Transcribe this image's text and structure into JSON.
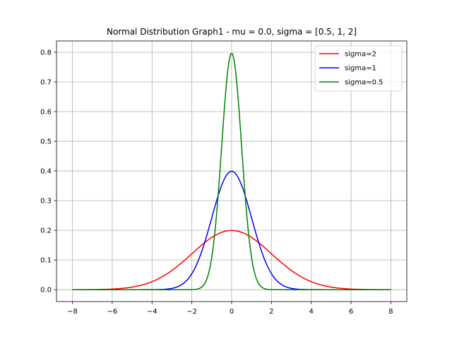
{
  "chart_data": {
    "type": "line",
    "title": "Normal Distribution Graph1 - mu = 0.0, sigma = [0.5, 1, 2]",
    "xlabel": "",
    "ylabel": "",
    "xlim": [
      -8.8,
      8.8
    ],
    "ylim": [
      -0.04,
      0.838
    ],
    "x_ticks": [
      -8,
      -6,
      -4,
      -2,
      0,
      2,
      4,
      6,
      8
    ],
    "x_tick_labels": [
      "−8",
      "−6",
      "−4",
      "−2",
      "0",
      "2",
      "4",
      "6",
      "8"
    ],
    "y_ticks": [
      0.0,
      0.1,
      0.2,
      0.3,
      0.4,
      0.5,
      0.6,
      0.7,
      0.8
    ],
    "y_tick_labels": [
      "0.0",
      "0.1",
      "0.2",
      "0.3",
      "0.4",
      "0.5",
      "0.6",
      "0.7",
      "0.8"
    ],
    "grid": true,
    "legend_position": "top-right",
    "mu": 0.0,
    "x_range": [
      -8,
      8
    ],
    "series": [
      {
        "name": "sigma=2",
        "sigma": 2,
        "color": "#ff0000"
      },
      {
        "name": "sigma=1",
        "sigma": 1,
        "color": "#0000ff"
      },
      {
        "name": "sigma=0.5",
        "sigma": 0.5,
        "color": "#008000"
      }
    ]
  }
}
